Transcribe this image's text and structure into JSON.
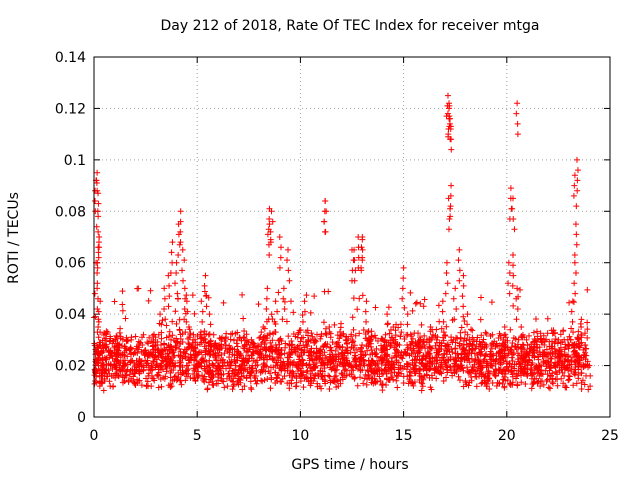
{
  "chart_data": {
    "type": "scatter",
    "title": "Day 212 of 2018, Rate Of TEC Index for receiver mtga",
    "xlabel": "GPS time / hours",
    "ylabel": "ROTI / TECUs",
    "xlim": [
      0,
      25
    ],
    "ylim": [
      0,
      0.14
    ],
    "x_ticks": [
      0,
      5,
      10,
      15,
      20,
      25
    ],
    "x_tick_labels": [
      "0",
      "5",
      "10",
      "15",
      "20",
      "25"
    ],
    "y_ticks": [
      0,
      0.02,
      0.04,
      0.06,
      0.08,
      0.1,
      0.12,
      0.14
    ],
    "y_tick_labels": [
      "0",
      "0.02",
      "0.04",
      "0.06",
      "0.08",
      "0.1",
      "0.12",
      "0.14"
    ],
    "grid": true,
    "marker": "plus",
    "series": [
      {
        "name": "ROTI",
        "color": "#ff0000",
        "x": [
          0.05,
          0.1,
          0.15,
          0.2,
          0.25,
          0.3,
          0.35,
          0.4,
          0.1,
          0.15,
          0.2,
          0.25,
          0.3,
          0.5,
          0.8,
          1.0,
          1.2,
          1.5,
          1.8,
          2.0,
          2.2,
          2.4,
          2.6,
          2.8,
          3.0,
          3.2,
          3.4,
          3.6,
          3.8,
          4.0,
          4.1,
          4.2,
          4.3,
          4.4,
          4.5,
          4.6,
          4.8,
          5.0,
          5.2,
          5.4,
          5.6,
          5.8,
          6.0,
          6.2,
          6.5,
          6.8,
          7.0,
          7.3,
          7.6,
          7.9,
          8.2,
          8.4,
          8.5,
          8.6,
          8.8,
          9.0,
          9.2,
          9.4,
          9.6,
          9.8,
          10.0,
          10.2,
          10.4,
          10.6,
          10.8,
          11.0,
          11.2,
          11.4,
          11.6,
          11.8,
          12.0,
          12.2,
          12.5,
          12.8,
          13.0,
          13.2,
          13.4,
          13.6,
          13.8,
          14.0,
          14.2,
          14.5,
          14.8,
          15.0,
          15.2,
          15.5,
          15.8,
          16.0,
          16.3,
          16.6,
          16.9,
          17.1,
          17.2,
          17.3,
          17.5,
          17.7,
          17.9,
          18.1,
          18.4,
          18.7,
          19.0,
          19.3,
          19.6,
          19.9,
          20.1,
          20.3,
          20.5,
          20.7,
          21.0,
          21.3,
          21.6,
          21.9,
          22.2,
          22.5,
          22.8,
          23.0,
          23.2,
          23.3,
          23.4,
          23.6,
          23.8,
          24.0,
          17.15,
          17.2,
          17.25,
          17.18,
          17.22,
          20.5,
          11.2,
          23.3,
          23.35,
          0.12,
          0.2,
          8.5,
          9.0,
          12.6,
          20.2,
          20.3,
          13.0
        ],
        "y": [
          0.018,
          0.092,
          0.095,
          0.078,
          0.07,
          0.045,
          0.02,
          0.025,
          0.06,
          0.05,
          0.035,
          0.028,
          0.022,
          0.018,
          0.024,
          0.02,
          0.028,
          0.022,
          0.03,
          0.025,
          0.018,
          0.032,
          0.024,
          0.02,
          0.028,
          0.04,
          0.05,
          0.055,
          0.068,
          0.06,
          0.075,
          0.08,
          0.065,
          0.05,
          0.045,
          0.035,
          0.03,
          0.028,
          0.045,
          0.055,
          0.04,
          0.032,
          0.025,
          0.022,
          0.02,
          0.024,
          0.018,
          0.02,
          0.028,
          0.022,
          0.035,
          0.05,
          0.075,
          0.08,
          0.045,
          0.03,
          0.05,
          0.065,
          0.025,
          0.02,
          0.018,
          0.045,
          0.03,
          0.022,
          0.025,
          0.02,
          0.084,
          0.035,
          0.022,
          0.02,
          0.025,
          0.03,
          0.065,
          0.07,
          0.069,
          0.045,
          0.03,
          0.025,
          0.022,
          0.03,
          0.04,
          0.035,
          0.028,
          0.058,
          0.04,
          0.025,
          0.03,
          0.028,
          0.035,
          0.03,
          0.045,
          0.06,
          0.12,
          0.09,
          0.05,
          0.065,
          0.055,
          0.04,
          0.03,
          0.025,
          0.028,
          0.032,
          0.025,
          0.035,
          0.06,
          0.085,
          0.05,
          0.035,
          0.028,
          0.025,
          0.02,
          0.022,
          0.025,
          0.03,
          0.02,
          0.028,
          0.045,
          0.06,
          0.1,
          0.035,
          0.028,
          0.02,
          0.125,
          0.122,
          0.116,
          0.085,
          0.121,
          0.122,
          0.084,
          0.094,
          0.075,
          0.092,
          0.072,
          0.081,
          0.07,
          0.065,
          0.089,
          0.063,
          0.07
        ]
      }
    ],
    "dense_band": {
      "description_x": [
        0,
        24
      ],
      "y_low": 0.01,
      "y_high": 0.035
    }
  }
}
